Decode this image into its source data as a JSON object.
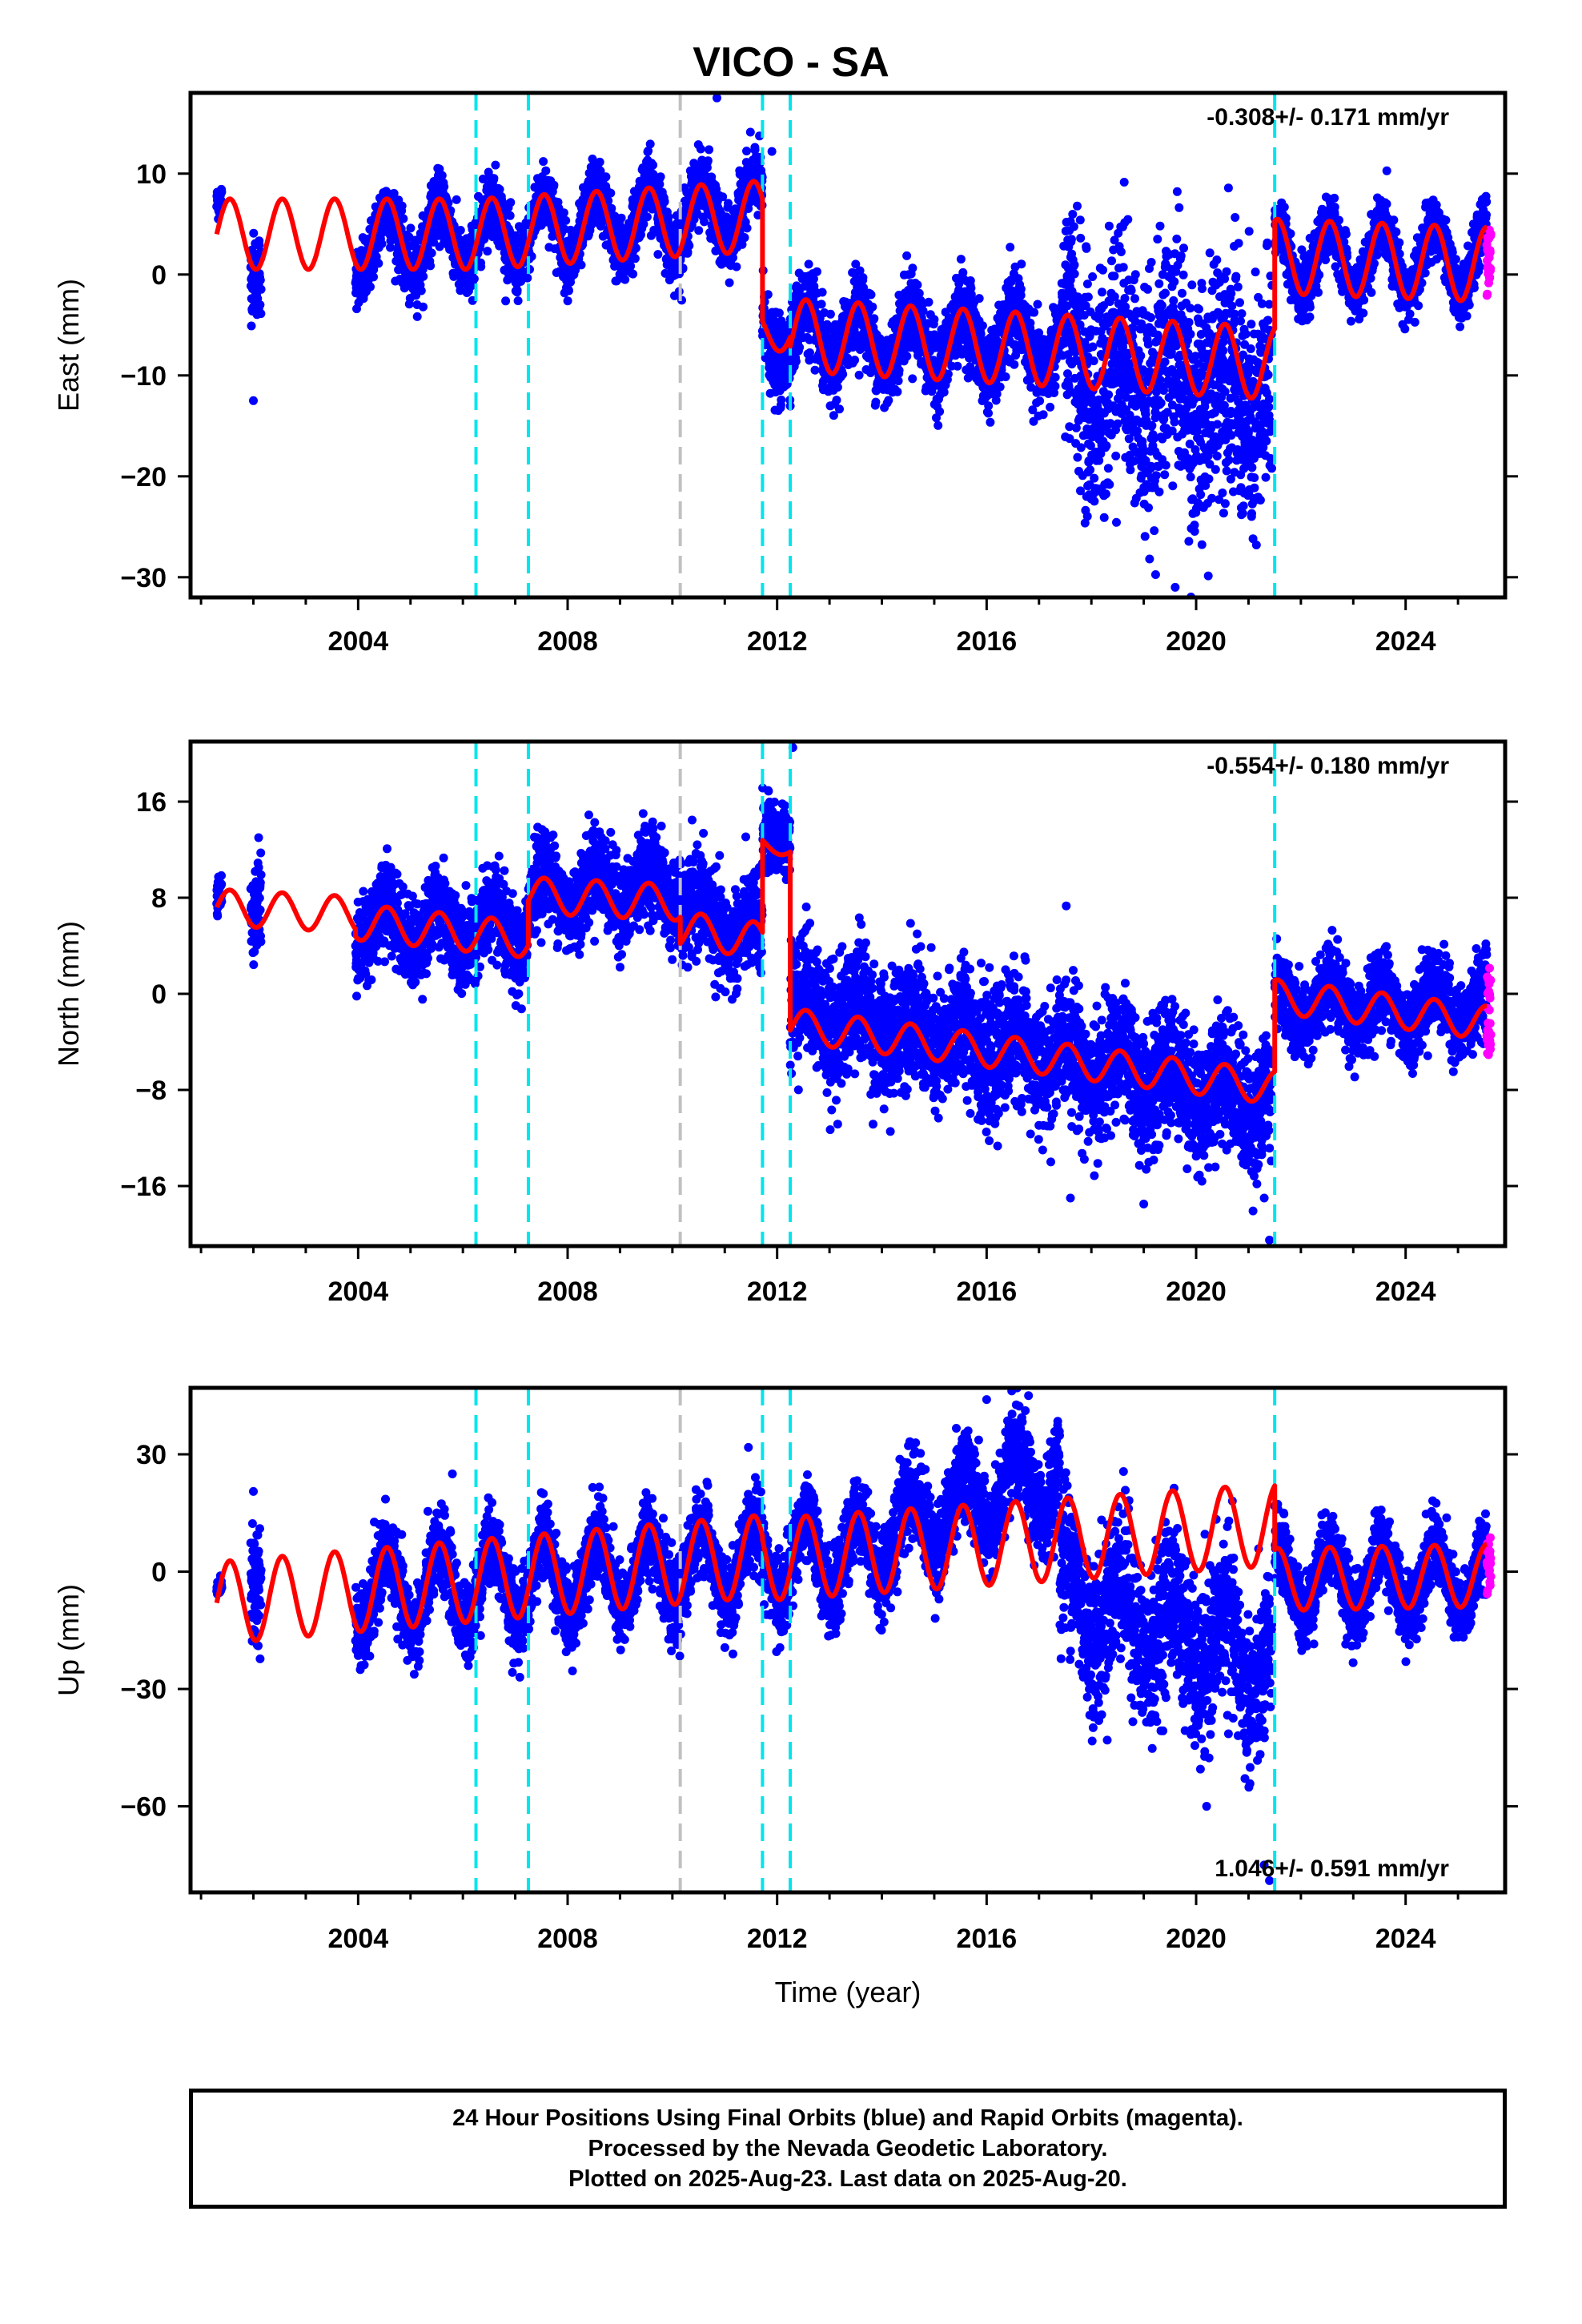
{
  "title": "VICO - SA",
  "footer": {
    "line1": "24 Hour Positions Using Final Orbits (blue) and Rapid Orbits (magenta).",
    "line2": "Processed by the Nevada Geodetic Laboratory.",
    "line3": "Plotted on 2025-Aug-23. Last data on 2025-Aug-20."
  },
  "chart_data": [
    {
      "type": "scatter",
      "panel": "east",
      "ylabel": "East (mm)",
      "xlabel": "",
      "rate": "-0.308+/- 0.171 mm/yr",
      "rate_position": "top-right",
      "xlim": [
        2000.8,
        2025.9
      ],
      "ylim": [
        -32,
        18
      ],
      "xticks": [
        2004,
        2008,
        2012,
        2016,
        2020,
        2024
      ],
      "yticks": [
        10,
        0,
        -10,
        -20,
        -30
      ],
      "event_lines": [
        {
          "x": 2006.25,
          "color": "#00e5ee"
        },
        {
          "x": 2007.25,
          "color": "#00e5ee"
        },
        {
          "x": 2010.15,
          "color": "#c0c0c0"
        },
        {
          "x": 2011.72,
          "color": "#00e5ee"
        },
        {
          "x": 2012.25,
          "color": "#00e5ee"
        },
        {
          "x": 2021.5,
          "color": "#00e5ee"
        }
      ],
      "series": [
        {
          "color": "#0000ff",
          "kind": "points",
          "values_description": "Daily positions, final orbits",
          "segments": [
            {
              "x_start": 2001.3,
              "x_end": 2001.4,
              "level": 7.0,
              "amp": 0.8,
              "noise": 0.8
            },
            {
              "x_start": 2001.95,
              "x_end": 2002.15,
              "level": 1.0,
              "amp": 1.0,
              "noise": 2.0
            },
            {
              "x_start": 2003.95,
              "x_end": 2011.72,
              "level_start": 2.8,
              "level_end": 6.5,
              "amp": 3.3,
              "noise": 1.6
            },
            {
              "x_start": 2011.72,
              "x_end": 2017.5,
              "level_start": -6.0,
              "level_end": -7.0,
              "amp": 3.0,
              "noise": 2.0
            },
            {
              "x_start": 2017.5,
              "x_end": 2021.45,
              "level_start": -9.0,
              "level_end": -12.0,
              "amp": 4.0,
              "noise": 6.0
            },
            {
              "x_start": 2021.5,
              "x_end": 2025.55,
              "level": 1.5,
              "amp": 3.3,
              "noise": 1.4
            }
          ],
          "outliers": [
            [
              2002.0,
              -12.5
            ],
            [
              2010.85,
              17.5
            ],
            [
              2011.9,
              12.2
            ],
            [
              2019.6,
              -31.0
            ]
          ]
        },
        {
          "color": "#ff00ff",
          "kind": "points",
          "values_description": "Daily positions, rapid orbits",
          "segments": [
            {
              "x_start": 2025.55,
              "x_end": 2025.63,
              "level": 2.0,
              "amp": 0,
              "noise": 1.8
            }
          ]
        },
        {
          "color": "#ff0000",
          "kind": "line",
          "name": "model",
          "segments": [
            {
              "x_start": 2001.3,
              "x_end": 2006.25,
              "level_start": 4.0,
              "level_end": 4.0,
              "amp": 3.5
            },
            {
              "x_start": 2006.25,
              "x_end": 2011.72,
              "level_start": 4.0,
              "level_end": 5.8,
              "amp": 3.5
            },
            {
              "x_start": 2011.72,
              "x_end": 2012.25,
              "level_start": -5.6,
              "level_end": -5.6,
              "amp": 2.0
            },
            {
              "x_start": 2012.25,
              "x_end": 2021.5,
              "level_start": -6.0,
              "level_end": -8.8,
              "amp": 3.6
            },
            {
              "x_start": 2021.5,
              "x_end": 2025.55,
              "level_start": 1.8,
              "level_end": 1.0,
              "amp": 3.7
            }
          ]
        }
      ]
    },
    {
      "type": "scatter",
      "panel": "north",
      "ylabel": "North (mm)",
      "xlabel": "",
      "rate": "-0.554+/- 0.180 mm/yr",
      "rate_position": "top-right",
      "xlim": [
        2000.8,
        2025.9
      ],
      "ylim": [
        -21,
        21
      ],
      "xticks": [
        2004,
        2008,
        2012,
        2016,
        2020,
        2024
      ],
      "yticks": [
        16,
        8,
        0,
        -8,
        -16
      ],
      "event_lines": [
        {
          "x": 2006.25,
          "color": "#00e5ee"
        },
        {
          "x": 2007.25,
          "color": "#00e5ee"
        },
        {
          "x": 2010.15,
          "color": "#c0c0c0"
        },
        {
          "x": 2011.72,
          "color": "#00e5ee"
        },
        {
          "x": 2012.25,
          "color": "#00e5ee"
        },
        {
          "x": 2021.5,
          "color": "#00e5ee"
        }
      ],
      "series": [
        {
          "color": "#0000ff",
          "kind": "points",
          "values_description": "Daily positions, final orbits",
          "segments": [
            {
              "x_start": 2001.3,
              "x_end": 2001.4,
              "level": 8.0,
              "amp": 0.8,
              "noise": 0.8
            },
            {
              "x_start": 2001.95,
              "x_end": 2002.15,
              "level": 8.0,
              "amp": 1.0,
              "noise": 2.0
            },
            {
              "x_start": 2003.95,
              "x_end": 2007.25,
              "level_start": 6.0,
              "level_end": 5.0,
              "amp": 1.8,
              "noise": 1.8
            },
            {
              "x_start": 2007.25,
              "x_end": 2010.15,
              "level_start": 8.5,
              "level_end": 9.0,
              "amp": 1.8,
              "noise": 1.8
            },
            {
              "x_start": 2010.15,
              "x_end": 2011.72,
              "level_start": 7.0,
              "level_end": 4.5,
              "amp": 1.5,
              "noise": 2.0
            },
            {
              "x_start": 2011.72,
              "x_end": 2012.25,
              "level": 13.5,
              "amp": 1.0,
              "noise": 1.5
            },
            {
              "x_start": 2012.25,
              "x_end": 2021.45,
              "level_start": -1.0,
              "level_end": -9.0,
              "amp": 1.8,
              "noise": 2.6
            },
            {
              "x_start": 2021.5,
              "x_end": 2025.55,
              "level": -1.0,
              "amp": 1.8,
              "noise": 1.6
            }
          ],
          "outliers": [
            [
              2002.1,
              13.0
            ],
            [
              2012.3,
              20.5
            ],
            [
              2021.3,
              -17.0
            ],
            [
              2021.4,
              -20.5
            ],
            [
              2017.6,
              -17.0
            ],
            [
              2019.0,
              -17.5
            ]
          ]
        },
        {
          "color": "#ff00ff",
          "kind": "points",
          "values_description": "Daily positions, rapid orbits",
          "segments": [
            {
              "x_start": 2025.55,
              "x_end": 2025.63,
              "level": -2.0,
              "amp": 0,
              "noise": 2.5
            }
          ]
        },
        {
          "color": "#ff0000",
          "kind": "line",
          "name": "model",
          "segments": [
            {
              "x_start": 2001.3,
              "x_end": 2003.95,
              "level_start": 7.2,
              "level_end": 6.6,
              "amp": 1.5
            },
            {
              "x_start": 2003.95,
              "x_end": 2007.25,
              "level_start": 6.0,
              "level_end": 4.5,
              "amp": 1.5
            },
            {
              "x_start": 2007.25,
              "x_end": 2010.15,
              "level_start": 8.2,
              "level_end": 7.6,
              "amp": 1.5
            },
            {
              "x_start": 2010.15,
              "x_end": 2011.72,
              "level_start": 5.4,
              "level_end": 4.4,
              "amp": 1.5
            },
            {
              "x_start": 2011.72,
              "x_end": 2012.25,
              "level_start": 12.5,
              "level_end": 12.0,
              "amp": 0.6
            },
            {
              "x_start": 2012.25,
              "x_end": 2021.5,
              "level_start": -2.6,
              "level_end": -7.8,
              "amp": 1.4
            },
            {
              "x_start": 2021.5,
              "x_end": 2025.55,
              "level_start": -0.2,
              "level_end": -2.4,
              "amp": 1.4
            }
          ]
        }
      ]
    },
    {
      "type": "scatter",
      "panel": "up",
      "ylabel": "Up (mm)",
      "xlabel": "Time (year)",
      "rate": "1.046+/- 0.591 mm/yr",
      "rate_position": "bottom-right",
      "xlim": [
        2000.8,
        2025.9
      ],
      "ylim": [
        -82,
        47
      ],
      "xticks": [
        2004,
        2008,
        2012,
        2016,
        2020,
        2024
      ],
      "yticks": [
        30,
        0,
        -30,
        -60
      ],
      "event_lines": [
        {
          "x": 2006.25,
          "color": "#00e5ee"
        },
        {
          "x": 2007.25,
          "color": "#00e5ee"
        },
        {
          "x": 2010.15,
          "color": "#c0c0c0"
        },
        {
          "x": 2011.72,
          "color": "#00e5ee"
        },
        {
          "x": 2012.25,
          "color": "#00e5ee"
        },
        {
          "x": 2021.5,
          "color": "#00e5ee"
        }
      ],
      "series": [
        {
          "color": "#0000ff",
          "kind": "points",
          "values_description": "Daily positions, final orbits",
          "segments": [
            {
              "x_start": 2001.3,
              "x_end": 2001.4,
              "level": -4.0,
              "amp": 0.5,
              "noise": 1.0
            },
            {
              "x_start": 2001.95,
              "x_end": 2002.15,
              "level": 0.0,
              "amp": 3.0,
              "noise": 8.0
            },
            {
              "x_start": 2003.95,
              "x_end": 2014.0,
              "level_start": -6.0,
              "level_end": 5.0,
              "amp": 10.0,
              "noise": 5.0
            },
            {
              "x_start": 2014.0,
              "x_end": 2017.4,
              "level_start": 10.0,
              "level_end": 25.0,
              "amp": 9.0,
              "noise": 6.0
            },
            {
              "x_start": 2017.4,
              "x_end": 2021.45,
              "level_start": -5.0,
              "level_end": -25.0,
              "amp": 10.0,
              "noise": 10.0
            },
            {
              "x_start": 2021.5,
              "x_end": 2025.55,
              "level": -2.0,
              "amp": 8.5,
              "noise": 4.5
            }
          ],
          "outliers": [
            [
              2002.0,
              20.5
            ],
            [
              2005.8,
              25.0
            ],
            [
              2016.0,
              44.0
            ],
            [
              2016.8,
              45.0
            ],
            [
              2020.2,
              -60.0
            ],
            [
              2021.3,
              -75.0
            ],
            [
              2021.4,
              -79.0
            ]
          ]
        },
        {
          "color": "#ff00ff",
          "kind": "points",
          "values_description": "Daily positions, rapid orbits",
          "segments": [
            {
              "x_start": 2025.55,
              "x_end": 2025.63,
              "level": 3.0,
              "amp": 0,
              "noise": 5.0
            }
          ]
        },
        {
          "color": "#ff0000",
          "kind": "line",
          "name": "model",
          "segments": [
            {
              "x_start": 2001.3,
              "x_end": 2011.72,
              "level_start": -8.0,
              "level_end": 4.0,
              "amp": 10.5
            },
            {
              "x_start": 2011.72,
              "x_end": 2021.5,
              "level_start": 3.0,
              "level_end": 12.0,
              "amp": 10.5
            },
            {
              "x_start": 2021.5,
              "x_end": 2025.55,
              "level_start": -2.0,
              "level_end": -1.0,
              "amp": 8.0
            }
          ]
        }
      ]
    }
  ]
}
